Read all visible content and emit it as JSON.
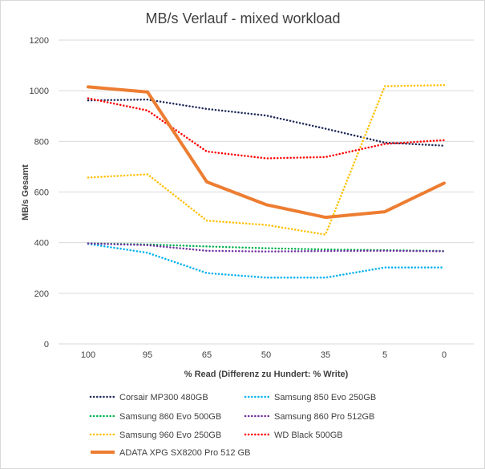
{
  "chart_data": {
    "type": "line",
    "title": "MB/s Verlauf - mixed workload",
    "xlabel": "% Read (Differenz zu Hundert: % Write)",
    "ylabel": "MB/s Gesamt",
    "categories": [
      "100",
      "95",
      "65",
      "50",
      "35",
      "5",
      "0"
    ],
    "ylim": [
      0,
      1200
    ],
    "yticks": [
      0,
      200,
      400,
      600,
      800,
      1000,
      1200
    ],
    "grid": true,
    "legend_position": "bottom",
    "series": [
      {
        "name": "Corsair MP300 480GB",
        "color": "#1f2a5a",
        "style": "dotted",
        "values": [
          962,
          965,
          928,
          902,
          850,
          795,
          783
        ]
      },
      {
        "name": "Samsung 850 Evo 250GB",
        "color": "#00b0f0",
        "style": "dotted",
        "values": [
          395,
          360,
          280,
          262,
          262,
          302,
          302
        ]
      },
      {
        "name": "Samsung 860 Evo 500GB",
        "color": "#00b050",
        "style": "dotted",
        "values": [
          397,
          393,
          385,
          378,
          373,
          370,
          367
        ]
      },
      {
        "name": "Samsung 860 Pro 512GB",
        "color": "#7030a0",
        "style": "dotted",
        "values": [
          397,
          390,
          368,
          365,
          367,
          368,
          366
        ]
      },
      {
        "name": "Samsung 960 Evo 250GB",
        "color": "#ffc000",
        "style": "dotted",
        "values": [
          657,
          670,
          487,
          470,
          432,
          1018,
          1022
        ]
      },
      {
        "name": "WD Black 500GB",
        "color": "#ff0000",
        "style": "dotted",
        "values": [
          970,
          922,
          760,
          733,
          738,
          790,
          805
        ]
      },
      {
        "name": "ADATA XPG SX8200 Pro 512 GB",
        "color": "#ed7d31",
        "style": "solid",
        "values": [
          1015,
          995,
          640,
          550,
          500,
          522,
          635
        ]
      }
    ]
  }
}
